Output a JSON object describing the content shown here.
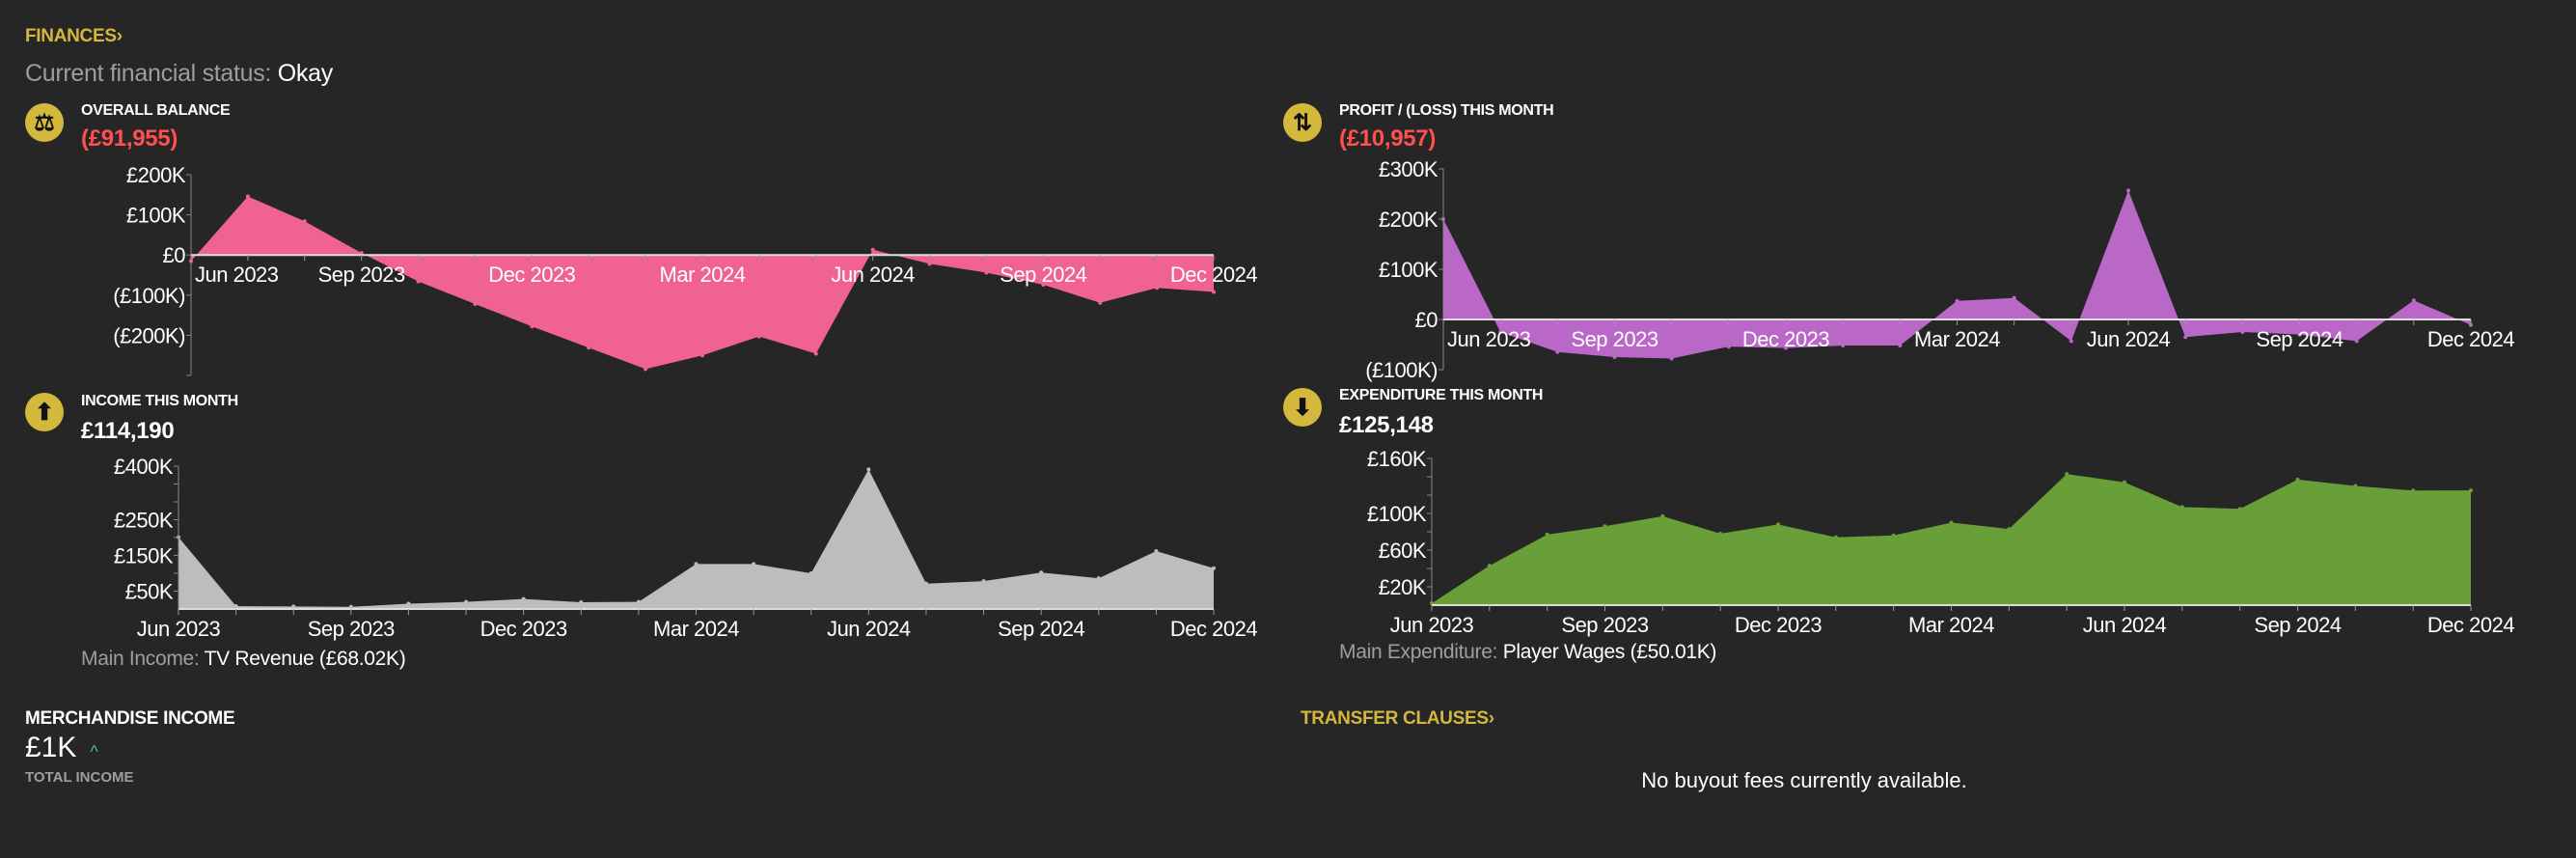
{
  "header": {
    "finances_link": "FINANCES",
    "status_label": "Current financial status:",
    "status_value": "Okay"
  },
  "colors": {
    "background": "#262626",
    "accent": "#d4b83c",
    "negative": "#ff4f4f",
    "balance": "#f06292",
    "profit": "#ba68c8",
    "income": "#bdbdbd",
    "expenditure": "#689f38",
    "trend_up": "#3ec46d"
  },
  "panels": {
    "balance": {
      "icon": "seesaw-icon",
      "glyph": "⚖",
      "title": "OVERALL BALANCE",
      "value": "(£91,955)"
    },
    "profit": {
      "icon": "profit-loss-icon",
      "glyph": "⇅",
      "title": "PROFIT / (LOSS) THIS MONTH",
      "value": "(£10,957)"
    },
    "income": {
      "icon": "arrow-up-icon",
      "glyph": "⬆",
      "title": "INCOME THIS MONTH",
      "value": "£114,190",
      "main_label": "Main Income:",
      "main_value": "TV Revenue (£68.02K)"
    },
    "expenditure": {
      "icon": "arrow-down-icon",
      "glyph": "⬇",
      "title": "EXPENDITURE THIS MONTH",
      "value": "£125,148",
      "main_label": "Main Expenditure:",
      "main_value": "Player Wages (£50.01K)"
    }
  },
  "merchandise": {
    "title": "MERCHANDISE INCOME",
    "value": "£1K",
    "trend": "up",
    "caption": "TOTAL INCOME"
  },
  "transfer_clauses": {
    "link": "TRANSFER CLAUSES",
    "empty_message": "No buyout fees currently available."
  },
  "chart_data": [
    {
      "id": "balance",
      "type": "area",
      "categories": [
        "Jun 2023",
        "Jul 2023",
        "Aug 2023",
        "Sep 2023",
        "Oct 2023",
        "Nov 2023",
        "Dec 2023",
        "Jan 2024",
        "Feb 2024",
        "Mar 2024",
        "Apr 2024",
        "May 2024",
        "Jun 2024",
        "Jul 2024",
        "Aug 2024",
        "Sep 2024",
        "Oct 2024",
        "Nov 2024",
        "Dec 2024"
      ],
      "values": [
        -15000,
        146000,
        84000,
        5000,
        -66000,
        -122000,
        -178000,
        -231000,
        -284000,
        -250000,
        -203000,
        -246000,
        13000,
        -22000,
        -44000,
        -74000,
        -119000,
        -82000,
        -91955
      ],
      "ylim": [
        -300000,
        200000
      ],
      "yticks": [
        200000,
        100000,
        0,
        -100000,
        -200000,
        -300000
      ],
      "ytick_labels": [
        "£200K",
        "£100K",
        "£0",
        "(£100K)",
        "(£200K)",
        ""
      ],
      "xtick_labels": [
        "Jun 2023",
        "Sep 2023",
        "Dec 2023",
        "Mar 2024",
        "Jun 2024",
        "Sep 2024",
        "Dec 2024"
      ]
    },
    {
      "id": "profit",
      "type": "area",
      "categories": [
        "Jun 2023",
        "Jul 2023",
        "Aug 2023",
        "Sep 2023",
        "Oct 2023",
        "Nov 2023",
        "Dec 2023",
        "Jan 2024",
        "Feb 2024",
        "Mar 2024",
        "Apr 2024",
        "May 2024",
        "Jun 2024",
        "Jul 2024",
        "Aug 2024",
        "Sep 2024",
        "Oct 2024",
        "Nov 2024",
        "Dec 2024"
      ],
      "values": [
        200000,
        -25000,
        -65000,
        -75000,
        -78000,
        -54000,
        -57000,
        -52000,
        -52000,
        37000,
        43000,
        -43000,
        257000,
        -35000,
        -25000,
        -30000,
        -43000,
        38000,
        -10957
      ],
      "ylim": [
        -100000,
        300000
      ],
      "yticks": [
        300000,
        200000,
        100000,
        0,
        -100000
      ],
      "ytick_labels": [
        "£300K",
        "£200K",
        "£100K",
        "£0",
        "(£100K)"
      ],
      "xtick_labels": [
        "Jun 2023",
        "Sep 2023",
        "Dec 2023",
        "Mar 2024",
        "Jun 2024",
        "Sep 2024",
        "Dec 2024"
      ]
    },
    {
      "id": "income",
      "type": "area",
      "categories": [
        "Jun 2023",
        "Jul 2023",
        "Aug 2023",
        "Sep 2023",
        "Oct 2023",
        "Nov 2023",
        "Dec 2023",
        "Jan 2024",
        "Feb 2024",
        "Mar 2024",
        "Apr 2024",
        "May 2024",
        "Jun 2024",
        "Jul 2024",
        "Aug 2024",
        "Sep 2024",
        "Oct 2024",
        "Nov 2024",
        "Dec 2024"
      ],
      "values": [
        201000,
        8000,
        7000,
        6000,
        15000,
        20000,
        28000,
        19000,
        20000,
        126000,
        126000,
        100000,
        391000,
        71000,
        78000,
        102000,
        86000,
        162000,
        114190
      ],
      "ylim": [
        0,
        400000
      ],
      "yticks": [
        400000,
        350000,
        300000,
        250000,
        200000,
        150000,
        100000,
        50000
      ],
      "ytick_labels": [
        "£400K",
        "",
        "",
        "£250K",
        "",
        "£150K",
        "",
        "£50K"
      ],
      "xtick_labels": [
        "Jun 2023",
        "Sep 2023",
        "Dec 2023",
        "Mar 2024",
        "Jun 2024",
        "Sep 2024",
        "Dec 2024"
      ]
    },
    {
      "id": "expenditure",
      "type": "area",
      "categories": [
        "Jun 2023",
        "Jul 2023",
        "Aug 2023",
        "Sep 2023",
        "Oct 2023",
        "Nov 2023",
        "Dec 2023",
        "Jan 2024",
        "Feb 2024",
        "Mar 2024",
        "Apr 2024",
        "May 2024",
        "Jun 2024",
        "Jul 2024",
        "Aug 2024",
        "Sep 2024",
        "Oct 2024",
        "Nov 2024",
        "Dec 2024"
      ],
      "values": [
        2000,
        43000,
        77000,
        86000,
        97000,
        78000,
        88000,
        74000,
        76000,
        90000,
        83000,
        143000,
        134000,
        107000,
        105000,
        137000,
        130000,
        125000,
        125148
      ],
      "ylim": [
        0,
        160000
      ],
      "yticks": [
        160000,
        140000,
        120000,
        100000,
        80000,
        60000,
        40000,
        20000
      ],
      "ytick_labels": [
        "£160K",
        "",
        "",
        "£100K",
        "",
        "£60K",
        "",
        "£20K"
      ],
      "xtick_labels": [
        "Jun 2023",
        "Sep 2023",
        "Dec 2023",
        "Mar 2024",
        "Jun 2024",
        "Sep 2024",
        "Dec 2024"
      ]
    }
  ]
}
